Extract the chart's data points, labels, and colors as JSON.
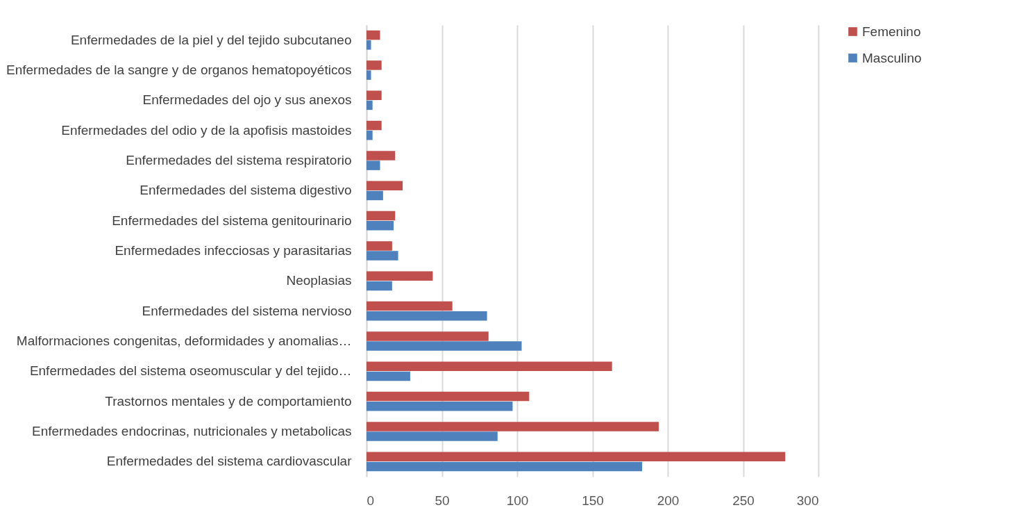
{
  "chart_data": {
    "type": "bar",
    "orientation": "horizontal",
    "categories": [
      "Enfermedades de la piel y del tejido subcutaneo",
      "Enfermedades de la sangre y de organos hematopoyéticos",
      "Enfermedades del ojo y sus anexos",
      "Enfermedades del odio y de la apofisis mastoides",
      "Enfermedades del sistema respiratorio",
      "Enfermedades del sistema digestivo",
      "Enfermedades del sistema genitourinario",
      "Enfermedades infecciosas y parasitarias",
      "Neoplasias",
      "Enfermedades del sistema nervioso",
      "Malformaciones congenitas, deformidades y anomalias…",
      "Enfermedades del sistema oseomuscular y del tejido…",
      "Trastornos mentales y de comportamiento",
      "Enfermedades endocrinas, nutricionales y metabolicas",
      "Enfermedades del sistema cardiovascular"
    ],
    "series": [
      {
        "name": "Femenino",
        "color": "#c0504d",
        "values": [
          9,
          10,
          10,
          10,
          19,
          24,
          19,
          17,
          44,
          57,
          81,
          163,
          108,
          194,
          278
        ]
      },
      {
        "name": "Masculino",
        "color": "#4f81bd",
        "values": [
          3,
          3,
          4,
          4,
          9,
          11,
          18,
          21,
          17,
          80,
          103,
          29,
          97,
          87,
          183
        ]
      }
    ],
    "xlim": [
      0,
      300
    ],
    "xticks": [
      0,
      50,
      100,
      150,
      200,
      250,
      300
    ],
    "grid": "x",
    "legend": "right"
  }
}
